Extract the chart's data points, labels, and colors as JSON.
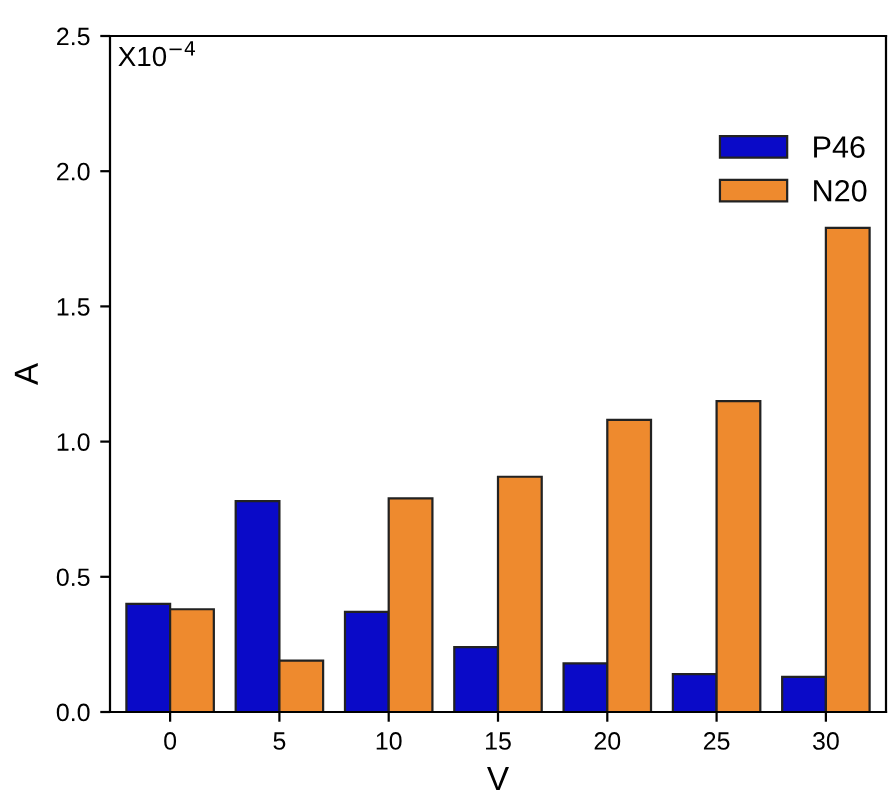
{
  "chart_data": {
    "type": "bar",
    "xlabel": "V",
    "ylabel": "A",
    "categories": [
      "0",
      "5",
      "10",
      "15",
      "20",
      "25",
      "30"
    ],
    "series": [
      {
        "name": "P46",
        "color": "#0a0ac8",
        "values": [
          0.4,
          0.78,
          0.37,
          0.24,
          0.18,
          0.14,
          0.13
        ]
      },
      {
        "name": "N20",
        "color": "#ee8a2e",
        "values": [
          0.38,
          0.19,
          0.79,
          0.87,
          1.08,
          1.15,
          1.79
        ]
      }
    ],
    "ylim": [
      0,
      2.5
    ],
    "yticks": [
      {
        "value": 0,
        "label": "0.0"
      },
      0.5,
      {
        "value": 1,
        "label": "1.0"
      },
      1.5,
      {
        "value": 2,
        "label": "2.0"
      },
      2.5
    ],
    "annotations": [
      "X10$^{−4}$"
    ],
    "legend": "top right",
    "grid": false
  }
}
